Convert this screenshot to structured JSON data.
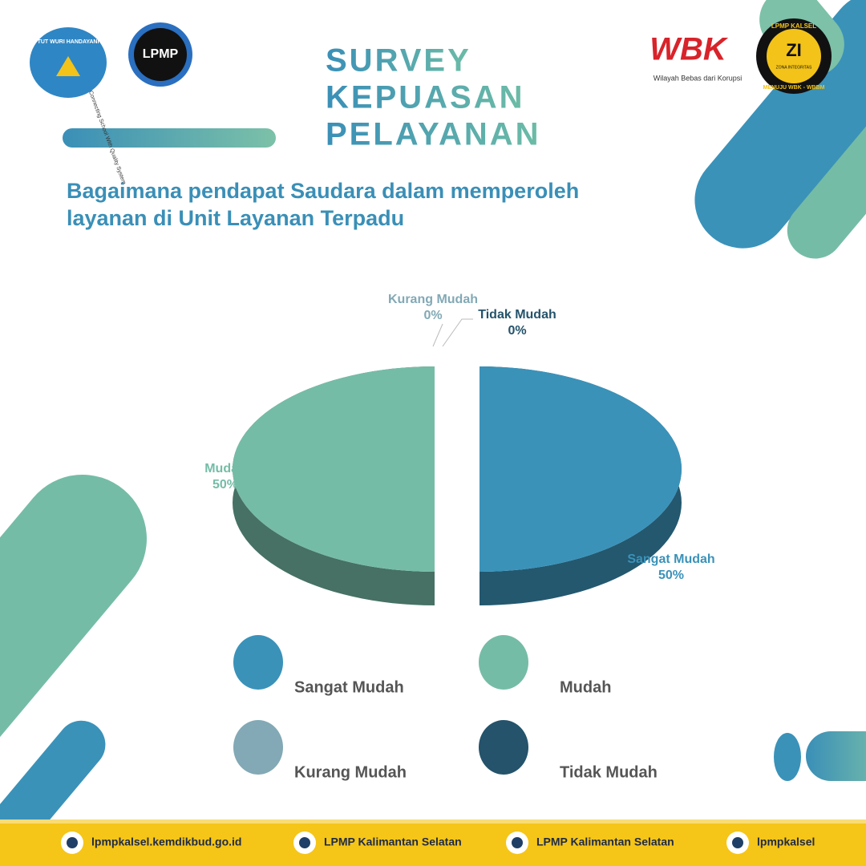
{
  "header": {
    "title": [
      "SURVEY",
      "KEPUASAN",
      "PELAYANAN"
    ],
    "question": [
      "Bagaimana pendapat Saudara dalam memperoleh",
      "layanan di Unit Layanan Terpadu"
    ],
    "logos": {
      "tut_wuri": "TUT WURI HANDAYANI",
      "lpmp": "LPMP",
      "lpmp_tagline": "Connecting School With Quality System",
      "wbk": "WBK",
      "wbk_tagline": "Wilayah Bebas dari Korupsi",
      "zi_top": "LPMP KALSEL",
      "zi": "ZI",
      "zi_sub": "ZONA INTEGRITAS",
      "zi_bottom": "MENUJU WBK - WBBM"
    }
  },
  "chart_data": {
    "type": "pie",
    "categories": [
      "Sangat Mudah",
      "Mudah",
      "Kurang Mudah",
      "Tidak Mudah"
    ],
    "values": [
      50,
      50,
      0,
      0
    ],
    "value_labels": [
      "50%",
      "50%",
      "0%",
      "0%"
    ],
    "colors": [
      "#3a92b9",
      "#75bca6",
      "#82a9b5",
      "#24536b"
    ],
    "legend": true
  },
  "footer": {
    "items": [
      "lpmpkalsel.kemdikbud.go.id",
      "LPMP Kalimantan Selatan",
      "LPMP Kalimantan Selatan",
      "lpmpkalsel"
    ]
  }
}
